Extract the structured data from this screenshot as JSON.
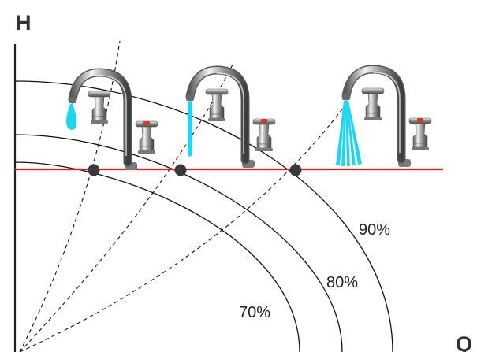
{
  "axes": {
    "y_label": "H",
    "x_label": "Q"
  },
  "curves": [
    {
      "label": "70%"
    },
    {
      "label": "80%"
    },
    {
      "label": "90%"
    }
  ],
  "faucets": [
    {
      "flow": "drip"
    },
    {
      "flow": "thin-stream"
    },
    {
      "flow": "full-spray"
    }
  ],
  "colors": {
    "reference_line": "#e31b1b",
    "water": "#1fd6f0",
    "operating_point": "#3a3a3a",
    "curve": "#111111"
  }
}
